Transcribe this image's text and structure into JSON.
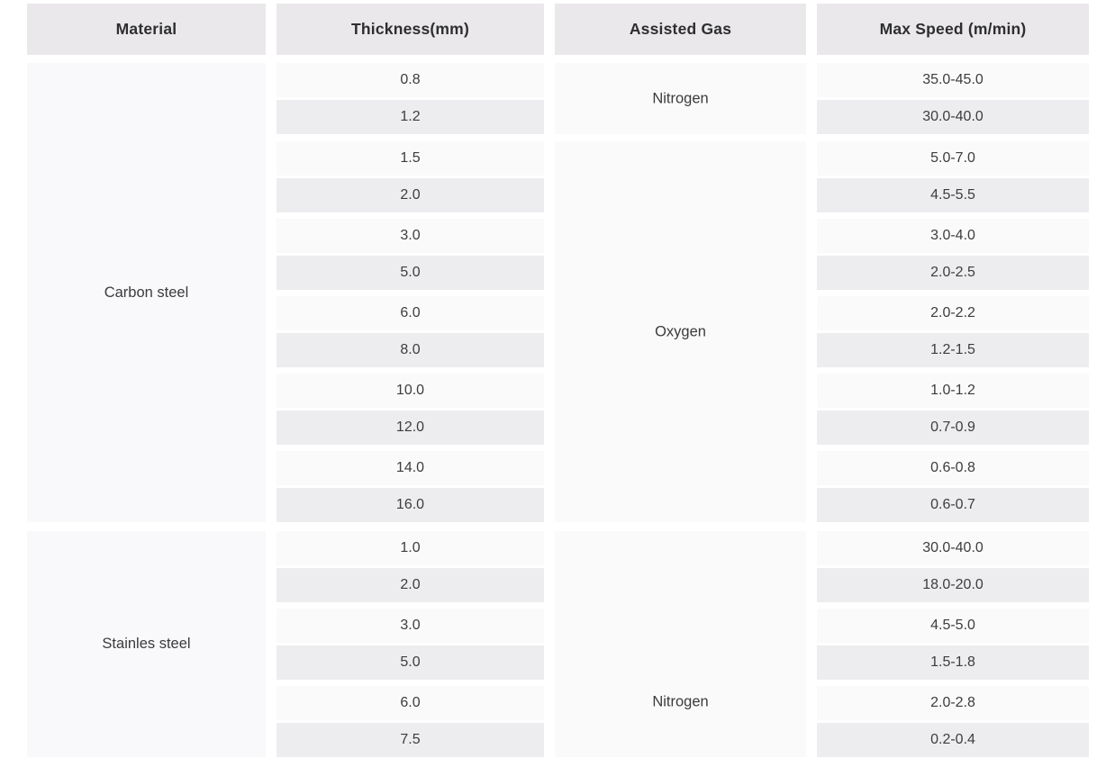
{
  "table": {
    "headers": {
      "material": "Material",
      "thickness": "Thickness(mm)",
      "gas": "Assisted Gas",
      "speed": "Max Speed (m/min)"
    },
    "sections": [
      {
        "material": "Carbon steel",
        "groups": [
          {
            "gas": "Nitrogen",
            "rows": [
              {
                "thickness": "0.8",
                "speed": "35.0-45.0"
              },
              {
                "thickness": "1.2",
                "speed": "30.0-40.0"
              }
            ]
          },
          {
            "gas": "Oxygen",
            "rows": [
              {
                "thickness": "1.5",
                "speed": "5.0-7.0"
              },
              {
                "thickness": "2.0",
                "speed": "4.5-5.5"
              },
              {
                "thickness": "3.0",
                "speed": "3.0-4.0"
              },
              {
                "thickness": "5.0",
                "speed": "2.0-2.5"
              },
              {
                "thickness": "6.0",
                "speed": "2.0-2.2"
              },
              {
                "thickness": "8.0",
                "speed": "1.2-1.5"
              },
              {
                "thickness": "10.0",
                "speed": "1.0-1.2"
              },
              {
                "thickness": "12.0",
                "speed": "0.7-0.9"
              },
              {
                "thickness": "14.0",
                "speed": "0.6-0.8"
              },
              {
                "thickness": "16.0",
                "speed": "0.6-0.7"
              }
            ]
          }
        ]
      },
      {
        "material": "Stainles steel",
        "groups": [
          {
            "gas": "Nitrogen",
            "rows": [
              {
                "thickness": "1.0",
                "speed": "30.0-40.0"
              },
              {
                "thickness": "2.0",
                "speed": "18.0-20.0"
              },
              {
                "thickness": "3.0",
                "speed": "4.5-5.0"
              },
              {
                "thickness": "5.0",
                "speed": "1.5-1.8"
              },
              {
                "thickness": "6.0",
                "speed": "2.0-2.8"
              },
              {
                "thickness": "7.5",
                "speed": "0.2-0.4"
              }
            ]
          }
        ]
      }
    ]
  },
  "colors": {
    "header_bg": "#eae8eb",
    "row_light_bg": "#fafafa",
    "row_dark_bg": "#edecef",
    "merged_cell_bg": "#f9f8fa",
    "header_text": "#2e2e30",
    "cell_text": "#3d3d40",
    "page_bg": "#ffffff"
  }
}
